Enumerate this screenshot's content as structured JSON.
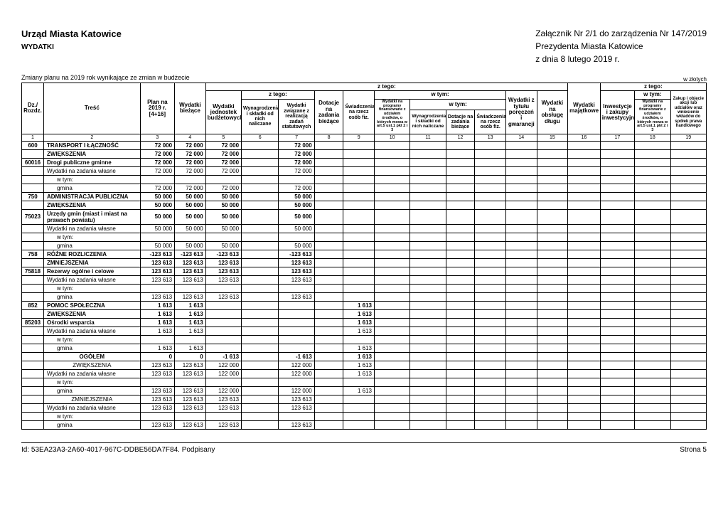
{
  "header": {
    "org": "Urząd Miasta Katowice",
    "section": "WYDATKI",
    "attachment": "Załącznik Nr 2/1 do zarządzenia Nr 147/2019",
    "president": "Prezydenta Miasta Katowice",
    "date": "z dnia 8 lutego 2019 r.",
    "subnote": "Zmiany planu na 2019 rok wynikające ze zmian w budżecie",
    "currency": "w złotych"
  },
  "columns": {
    "c1": "Dz./ Rozdz.",
    "c2": "Treść",
    "c3": "Plan na 2019 r. [4+16]",
    "c4": "Wydatki bieżące",
    "g_ztego1": "z tego:",
    "g_wtym1": "w tym:",
    "g_ztego2": "z tego:",
    "g_wtym2": "w tym:",
    "g_ztego3": "z tego:",
    "g_wtym3": "w tym:",
    "c5": "Wydatki jednostek budżetowych",
    "c6": "Wynagrodzenia i składki od nich naliczane",
    "c7": "Wydatki związane z realizacją zadań statutowych",
    "c8": "Dotacje na zadania bieżące",
    "c9": "Świadczenia na rzecz osób fiz.",
    "c10": "Wydatki na programy finansowane z udziałem środków, o których mowa w art.5 ust.1 pkt 2 i 3",
    "c11": "Wynagrodzenia i składki od nich naliczane",
    "c12": "Dotacje na zadania bieżące",
    "c13": "Świadczenia na rzecz osób fiz.",
    "c14": "Wydatki z tytułu poręczeń i gwarancji",
    "c15": "Wydatki na obsługę długu",
    "c16": "Wydatki majątkowe",
    "c17": "Inwestycje i zakupy inwestycyjne",
    "c18": "Wydatki na programy finansowane z udziałem środków, o których mowa w art.5 ust.1 pkt 2 i 3",
    "c19": "Zakup i objęcie akcji lub udziałów oraz wniesienie wkładów do spółek prawa handlowego"
  },
  "rows": [
    {
      "code": "600",
      "label": "TRANSPORT I ŁĄCZNOŚĆ",
      "bold": true,
      "v": [
        "72 000",
        "72 000",
        "72 000",
        "",
        "72 000",
        "",
        "",
        "",
        "",
        "",
        "",
        "",
        "",
        "",
        "",
        "",
        ""
      ]
    },
    {
      "code": "",
      "label": "ZWIĘKSZENIA",
      "bold": true,
      "v": [
        "72 000",
        "72 000",
        "72 000",
        "",
        "72 000",
        "",
        "",
        "",
        "",
        "",
        "",
        "",
        "",
        "",
        "",
        "",
        ""
      ]
    },
    {
      "code": "60016",
      "label": "Drogi publiczne gminne",
      "bold": true,
      "v": [
        "72 000",
        "72 000",
        "72 000",
        "",
        "72 000",
        "",
        "",
        "",
        "",
        "",
        "",
        "",
        "",
        "",
        "",
        "",
        ""
      ]
    },
    {
      "code": "",
      "label": "Wydatki na zadania własne",
      "bold": false,
      "v": [
        "72 000",
        "72 000",
        "72 000",
        "",
        "72 000",
        "",
        "",
        "",
        "",
        "",
        "",
        "",
        "",
        "",
        "",
        "",
        ""
      ]
    },
    {
      "code": "",
      "label": "w tym:",
      "indent": true,
      "bold": false,
      "v": [
        "",
        "",
        "",
        "",
        "",
        "",
        "",
        "",
        "",
        "",
        "",
        "",
        "",
        "",
        "",
        "",
        ""
      ]
    },
    {
      "code": "",
      "label": "gmina",
      "indent": true,
      "bold": false,
      "v": [
        "72 000",
        "72 000",
        "72 000",
        "",
        "72 000",
        "",
        "",
        "",
        "",
        "",
        "",
        "",
        "",
        "",
        "",
        "",
        ""
      ]
    },
    {
      "code": "750",
      "label": "ADMINISTRACJA PUBLICZNA",
      "bold": true,
      "v": [
        "50 000",
        "50 000",
        "50 000",
        "",
        "50 000",
        "",
        "",
        "",
        "",
        "",
        "",
        "",
        "",
        "",
        "",
        "",
        ""
      ]
    },
    {
      "code": "",
      "label": "ZWIĘKSZENIA",
      "bold": true,
      "v": [
        "50 000",
        "50 000",
        "50 000",
        "",
        "50 000",
        "",
        "",
        "",
        "",
        "",
        "",
        "",
        "",
        "",
        "",
        "",
        ""
      ]
    },
    {
      "code": "75023",
      "label": "Urzędy gmin (miast i miast na prawach powiatu)",
      "bold": true,
      "v": [
        "50 000",
        "50 000",
        "50 000",
        "",
        "50 000",
        "",
        "",
        "",
        "",
        "",
        "",
        "",
        "",
        "",
        "",
        "",
        ""
      ]
    },
    {
      "code": "",
      "label": "Wydatki na zadania własne",
      "bold": false,
      "v": [
        "50 000",
        "50 000",
        "50 000",
        "",
        "50 000",
        "",
        "",
        "",
        "",
        "",
        "",
        "",
        "",
        "",
        "",
        "",
        ""
      ]
    },
    {
      "code": "",
      "label": "w tym:",
      "indent": true,
      "bold": false,
      "v": [
        "",
        "",
        "",
        "",
        "",
        "",
        "",
        "",
        "",
        "",
        "",
        "",
        "",
        "",
        "",
        "",
        ""
      ]
    },
    {
      "code": "",
      "label": "gmina",
      "indent": true,
      "bold": false,
      "v": [
        "50 000",
        "50 000",
        "50 000",
        "",
        "50 000",
        "",
        "",
        "",
        "",
        "",
        "",
        "",
        "",
        "",
        "",
        "",
        ""
      ]
    },
    {
      "code": "758",
      "label": "RÓŻNE ROZLICZENIA",
      "bold": true,
      "v": [
        "-123 613",
        "-123 613",
        "-123 613",
        "",
        "-123 613",
        "",
        "",
        "",
        "",
        "",
        "",
        "",
        "",
        "",
        "",
        "",
        ""
      ]
    },
    {
      "code": "",
      "label": "ZMNIEJSZENIA",
      "bold": true,
      "v": [
        "123 613",
        "123 613",
        "123 613",
        "",
        "123 613",
        "",
        "",
        "",
        "",
        "",
        "",
        "",
        "",
        "",
        "",
        "",
        ""
      ]
    },
    {
      "code": "75818",
      "label": "Rezerwy ogólne i celowe",
      "bold": true,
      "v": [
        "123 613",
        "123 613",
        "123 613",
        "",
        "123 613",
        "",
        "",
        "",
        "",
        "",
        "",
        "",
        "",
        "",
        "",
        "",
        ""
      ]
    },
    {
      "code": "",
      "label": "Wydatki na zadania własne",
      "bold": false,
      "v": [
        "123 613",
        "123 613",
        "123 613",
        "",
        "123 613",
        "",
        "",
        "",
        "",
        "",
        "",
        "",
        "",
        "",
        "",
        "",
        ""
      ]
    },
    {
      "code": "",
      "label": "w tym:",
      "indent": true,
      "bold": false,
      "v": [
        "",
        "",
        "",
        "",
        "",
        "",
        "",
        "",
        "",
        "",
        "",
        "",
        "",
        "",
        "",
        "",
        ""
      ]
    },
    {
      "code": "",
      "label": "gmina",
      "indent": true,
      "bold": false,
      "v": [
        "123 613",
        "123 613",
        "123 613",
        "",
        "123 613",
        "",
        "",
        "",
        "",
        "",
        "",
        "",
        "",
        "",
        "",
        "",
        ""
      ]
    },
    {
      "code": "852",
      "label": "POMOC SPOŁECZNA",
      "bold": true,
      "v": [
        "1 613",
        "1 613",
        "",
        "",
        "",
        "",
        "1 613",
        "",
        "",
        "",
        "",
        "",
        "",
        "",
        "",
        "",
        ""
      ]
    },
    {
      "code": "",
      "label": "ZWIĘKSZENIA",
      "bold": true,
      "v": [
        "1 613",
        "1 613",
        "",
        "",
        "",
        "",
        "1 613",
        "",
        "",
        "",
        "",
        "",
        "",
        "",
        "",
        "",
        ""
      ]
    },
    {
      "code": "85203",
      "label": "Ośrodki wsparcia",
      "bold": true,
      "v": [
        "1 613",
        "1 613",
        "",
        "",
        "",
        "",
        "1 613",
        "",
        "",
        "",
        "",
        "",
        "",
        "",
        "",
        "",
        ""
      ]
    },
    {
      "code": "",
      "label": "Wydatki na zadania własne",
      "bold": false,
      "v": [
        "1 613",
        "1 613",
        "",
        "",
        "",
        "",
        "1 613",
        "",
        "",
        "",
        "",
        "",
        "",
        "",
        "",
        "",
        ""
      ]
    },
    {
      "code": "",
      "label": "w tym:",
      "indent": true,
      "bold": false,
      "v": [
        "",
        "",
        "",
        "",
        "",
        "",
        "",
        "",
        "",
        "",
        "",
        "",
        "",
        "",
        "",
        "",
        ""
      ]
    },
    {
      "code": "",
      "label": "gmina",
      "indent": true,
      "bold": false,
      "v": [
        "1 613",
        "1 613",
        "",
        "",
        "",
        "",
        "1 613",
        "",
        "",
        "",
        "",
        "",
        "",
        "",
        "",
        "",
        ""
      ]
    },
    {
      "code": "",
      "label": "OGÓŁEM",
      "bold": true,
      "center": true,
      "v": [
        "0",
        "0",
        "-1 613",
        "",
        "-1 613",
        "",
        "1 613",
        "",
        "",
        "",
        "",
        "",
        "",
        "",
        "",
        "",
        ""
      ]
    },
    {
      "code": "",
      "label": "ZWIĘKSZENIA",
      "bold": false,
      "center": true,
      "v": [
        "123 613",
        "123 613",
        "122 000",
        "",
        "122 000",
        "",
        "1 613",
        "",
        "",
        "",
        "",
        "",
        "",
        "",
        "",
        "",
        ""
      ]
    },
    {
      "code": "",
      "label": "Wydatki na zadania własne",
      "bold": false,
      "v": [
        "123 613",
        "123 613",
        "122 000",
        "",
        "122 000",
        "",
        "1 613",
        "",
        "",
        "",
        "",
        "",
        "",
        "",
        "",
        "",
        ""
      ]
    },
    {
      "code": "",
      "label": "w tym:",
      "indent": true,
      "bold": false,
      "v": [
        "",
        "",
        "",
        "",
        "",
        "",
        "",
        "",
        "",
        "",
        "",
        "",
        "",
        "",
        "",
        "",
        ""
      ]
    },
    {
      "code": "",
      "label": "gmina",
      "indent": true,
      "bold": false,
      "v": [
        "123 613",
        "123 613",
        "122 000",
        "",
        "122 000",
        "",
        "1 613",
        "",
        "",
        "",
        "",
        "",
        "",
        "",
        "",
        "",
        ""
      ]
    },
    {
      "code": "",
      "label": "ZMNIEJSZENIA",
      "bold": false,
      "center": true,
      "v": [
        "123 613",
        "123 613",
        "123 613",
        "",
        "123 613",
        "",
        "",
        "",
        "",
        "",
        "",
        "",
        "",
        "",
        "",
        "",
        ""
      ]
    },
    {
      "code": "",
      "label": "Wydatki na zadania własne",
      "bold": false,
      "v": [
        "123 613",
        "123 613",
        "123 613",
        "",
        "123 613",
        "",
        "",
        "",
        "",
        "",
        "",
        "",
        "",
        "",
        "",
        "",
        ""
      ]
    },
    {
      "code": "",
      "label": "w tym:",
      "indent": true,
      "bold": false,
      "v": [
        "",
        "",
        "",
        "",
        "",
        "",
        "",
        "",
        "",
        "",
        "",
        "",
        "",
        "",
        "",
        "",
        ""
      ]
    },
    {
      "code": "",
      "label": "gmina",
      "indent": true,
      "bold": false,
      "v": [
        "123 613",
        "123 613",
        "123 613",
        "",
        "123 613",
        "",
        "",
        "",
        "",
        "",
        "",
        "",
        "",
        "",
        "",
        "",
        ""
      ]
    }
  ],
  "footer": {
    "id": "Id: 53EA23A3-2A60-4017-967C-DDBE56DA7F84. Podpisany",
    "page": "Strona 5"
  }
}
